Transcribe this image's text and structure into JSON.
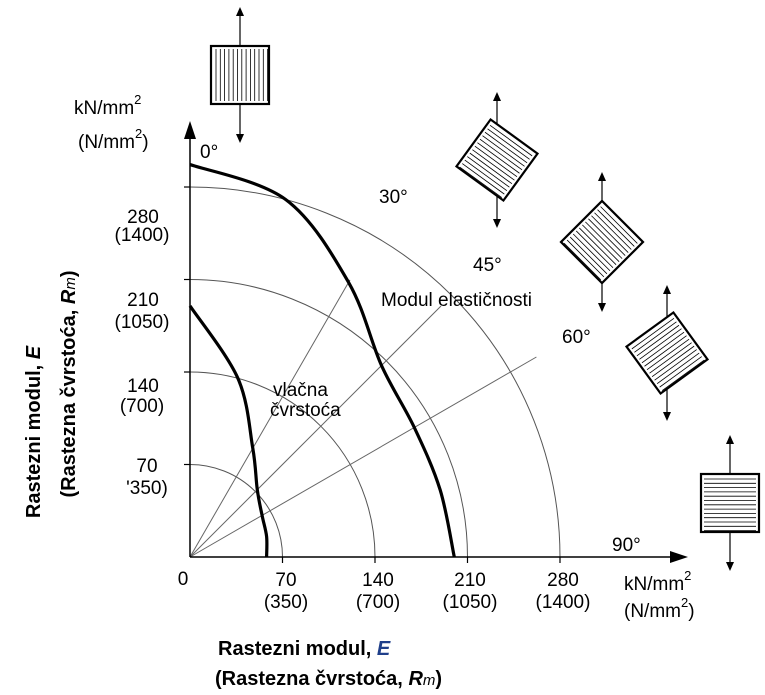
{
  "chart_data": {
    "type": "line",
    "title": "",
    "coordinate_system": "polar quadrant (angle between fibre direction and load)",
    "x_axis": {
      "label_line1": "Rastezni modul,",
      "label_symbol1": "E",
      "label_line2_prefix": "(Rastezna čvrstoća,",
      "label_symbol2": "R",
      "label_symbol2_sub": "m",
      "label_line2_suffix": ")",
      "unit_line1_base": "kN/mm",
      "unit_line2_base": "(N/mm",
      "unit_exp": "2",
      "unit_line2_close": ")",
      "origin_label": "0",
      "ticks": [
        {
          "value": 70,
          "label": "70",
          "label2": "(350)"
        },
        {
          "value": 140,
          "label": "140",
          "label2": "(700)"
        },
        {
          "value": 210,
          "label": "210",
          "label2": "(1050)"
        },
        {
          "value": 280,
          "label": "280",
          "label2": "(1400)"
        }
      ],
      "range": [
        0,
        370
      ]
    },
    "y_axis": {
      "label_line1": "Rastezni modul,",
      "label_symbol1": "E",
      "label_line2_prefix": "(Rastezna čvrstoća,",
      "label_symbol2": "R",
      "label_symbol2_sub": "m",
      "label_line2_suffix": ")",
      "unit_line1_base": "kN/mm",
      "unit_line2_base": "(N/mm",
      "unit_exp": "2",
      "unit_line2_close": ")",
      "ticks": [
        {
          "value": 70,
          "label": "70",
          "label2": "'350)"
        },
        {
          "value": 140,
          "label": "140",
          "label2": "(700)"
        },
        {
          "value": 210,
          "label": "210",
          "label2": "(1050)"
        },
        {
          "value": 280,
          "label": "280",
          "label2": "(1400)"
        }
      ],
      "range": [
        0,
        370
      ]
    },
    "reference_arcs": [
      70,
      140,
      210,
      280
    ],
    "angle_lines": [
      {
        "deg": 0,
        "label": "0°"
      },
      {
        "deg": 30,
        "label": "30°"
      },
      {
        "deg": 45,
        "label": "45°"
      },
      {
        "deg": 60,
        "label": "60°"
      },
      {
        "deg": 90,
        "label": "90°"
      }
    ],
    "series": [
      {
        "name": "Modul elastičnosti",
        "points": [
          [
            0,
            0,
            297
          ],
          [
            90,
            0,
            0
          ]
        ],
        "polar": [
          [
            0,
            297
          ],
          [
            15,
            280
          ],
          [
            30,
            240
          ],
          [
            45,
            205
          ],
          [
            60,
            196
          ],
          [
            75,
            196
          ],
          [
            90,
            200
          ]
        ]
      },
      {
        "name": "vlačna čvrstoća",
        "polar": [
          [
            0,
            190
          ],
          [
            15,
            140
          ],
          [
            30,
            95
          ],
          [
            45,
            72
          ],
          [
            60,
            63
          ],
          [
            75,
            60
          ],
          [
            90,
            58
          ]
        ]
      }
    ],
    "grid": false,
    "legend": "none"
  }
}
